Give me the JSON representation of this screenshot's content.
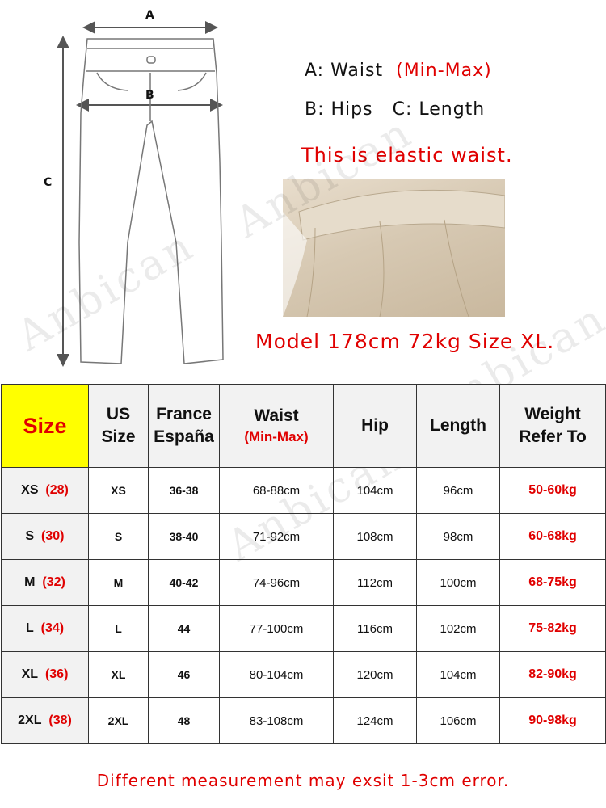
{
  "diagram": {
    "label_a": "A",
    "label_b": "B",
    "label_c": "C"
  },
  "legend": {
    "waist": "A: Waist",
    "waist_note": "(Min-Max)",
    "hips": "B: Hips",
    "length": "C: Length",
    "elastic": "This is elastic waist.",
    "model": "Model 178cm 72kg Size XL."
  },
  "watermark": "Anbican",
  "table": {
    "headers": {
      "size": "Size",
      "us": "US Size",
      "france": "France España",
      "waist": "Waist",
      "waist_note": "(Min-Max)",
      "hip": "Hip",
      "length": "Length",
      "weight": "Weight Refer To"
    },
    "rows": [
      {
        "size": "XS",
        "num": "(28)",
        "us": "XS",
        "fr": "36-38",
        "waist": "68-88cm",
        "hip": "104cm",
        "length": "96cm",
        "weight": "50-60kg"
      },
      {
        "size": "S",
        "num": "(30)",
        "us": "S",
        "fr": "38-40",
        "waist": "71-92cm",
        "hip": "108cm",
        "length": "98cm",
        "weight": "60-68kg"
      },
      {
        "size": "M",
        "num": "(32)",
        "us": "M",
        "fr": "40-42",
        "waist": "74-96cm",
        "hip": "112cm",
        "length": "100cm",
        "weight": "68-75kg"
      },
      {
        "size": "L",
        "num": "(34)",
        "us": "L",
        "fr": "44",
        "waist": "77-100cm",
        "hip": "116cm",
        "length": "102cm",
        "weight": "75-82kg"
      },
      {
        "size": "XL",
        "num": "(36)",
        "us": "XL",
        "fr": "46",
        "waist": "80-104cm",
        "hip": "120cm",
        "length": "104cm",
        "weight": "82-90kg"
      },
      {
        "size": "2XL",
        "num": "(38)",
        "us": "2XL",
        "fr": "48",
        "waist": "83-108cm",
        "hip": "124cm",
        "length": "106cm",
        "weight": "90-98kg"
      }
    ]
  },
  "footer": "Different measurement may exsit 1-3cm error.",
  "colors": {
    "accent_red": "#e00000",
    "highlight_yellow": "#ffff00",
    "header_gray": "#f2f2f2"
  }
}
